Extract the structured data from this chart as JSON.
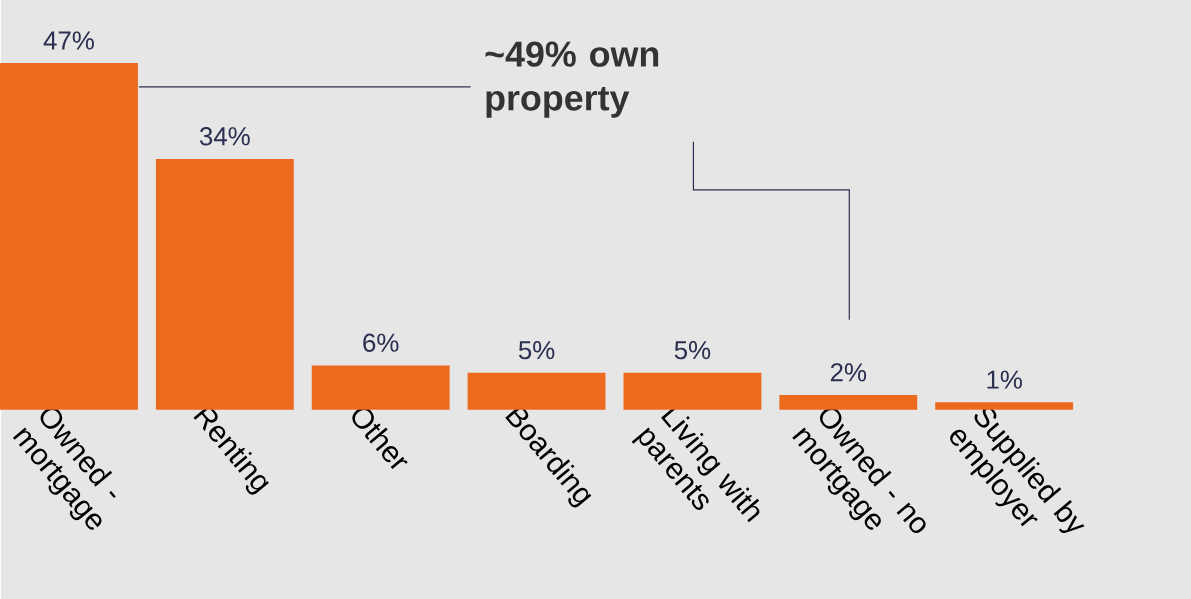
{
  "chart_data": {
    "type": "bar",
    "categories": [
      "Owned - mortgage",
      "Renting",
      "Other",
      "Boarding",
      "Living with parents",
      "Owned - no mortgage",
      "Supplied by employer"
    ],
    "values": [
      47,
      34,
      6,
      5,
      5,
      2,
      1
    ],
    "value_labels": [
      "47%",
      "34%",
      "6%",
      "5%",
      "5%",
      "2%",
      "1%"
    ],
    "color": "#ec6a1e",
    "annotations": [
      "~49% own property"
    ]
  }
}
